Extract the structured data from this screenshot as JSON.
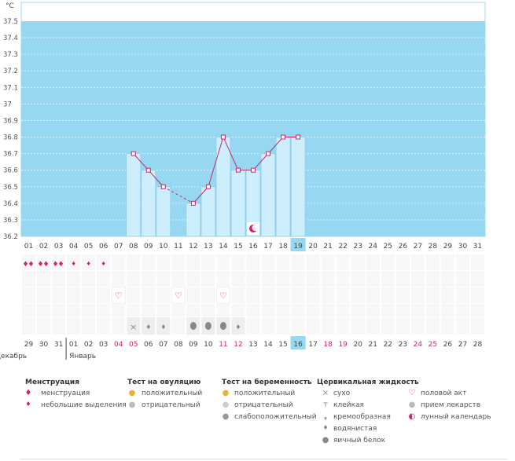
{
  "chart_data": {
    "type": "bar",
    "ylabel": "°C",
    "ylim": [
      36.2,
      37.5
    ],
    "y_ticks": [
      "36.2",
      "36.3",
      "36.4",
      "36.5",
      "36.6",
      "36.7",
      "36.8",
      "36.9",
      "37",
      "37.1",
      "37.2",
      "37.3",
      "37.4",
      "37.5"
    ],
    "days": [
      "01",
      "02",
      "03",
      "04",
      "05",
      "06",
      "07",
      "08",
      "09",
      "10",
      "11",
      "12",
      "13",
      "14",
      "15",
      "16",
      "17",
      "18",
      "19",
      "20",
      "21",
      "22",
      "23",
      "24",
      "25",
      "26",
      "27",
      "28",
      "29",
      "30",
      "31"
    ],
    "values": [
      null,
      null,
      null,
      null,
      null,
      null,
      null,
      36.7,
      36.6,
      36.5,
      null,
      36.4,
      36.5,
      36.8,
      36.6,
      36.6,
      36.7,
      36.8,
      36.8,
      null,
      null,
      null,
      null,
      null,
      null,
      null,
      null,
      null,
      null,
      null,
      null
    ],
    "current_day": "19",
    "dates": [
      "29",
      "30",
      "31",
      "01",
      "02",
      "03",
      "04",
      "05",
      "06",
      "07",
      "08",
      "09",
      "10",
      "11",
      "12",
      "13",
      "14",
      "15",
      "16",
      "17",
      "18",
      "19",
      "20",
      "21",
      "22",
      "23",
      "24",
      "25",
      "26",
      "27",
      "28"
    ],
    "red_dates": [
      6,
      7,
      13,
      14,
      20,
      21,
      26,
      27
    ],
    "current_date_index": 18,
    "month_left": "Декабрь",
    "month_right": "Январь",
    "menstruation": [
      0,
      0,
      0,
      1,
      1,
      1,
      null,
      null,
      null,
      null,
      null,
      null,
      null,
      null,
      null,
      null,
      null,
      null,
      null,
      null,
      null,
      null,
      null,
      null,
      null,
      null,
      null,
      null,
      null,
      null,
      null
    ],
    "intercourse_days": [
      6,
      10,
      13
    ],
    "moon_day": 15,
    "cervical": [
      null,
      null,
      null,
      null,
      null,
      null,
      null,
      "dry",
      "watery",
      "watery",
      null,
      "eggwhite",
      "eggwhite",
      "eggwhite",
      "watery",
      null,
      null,
      null,
      null,
      null,
      null,
      null,
      null,
      null,
      null,
      null,
      null,
      null,
      null,
      null,
      null
    ],
    "colors": {
      "plot_bg": "#96d7f2",
      "bar": "#cdeefc",
      "bar_stroke": "#8fcbe8",
      "line": "#d0236a",
      "current": "#96d7f2",
      "red": "#e0186c"
    }
  },
  "legend": {
    "menstruation": {
      "title": "Менструация",
      "items": [
        "менструация",
        "небольшие выделения"
      ]
    },
    "ovulation": {
      "title": "Тест на овуляцию",
      "items": [
        "положительный",
        "отрицательный"
      ]
    },
    "pregnancy": {
      "title": "Тест на беременность",
      "items": [
        "положительный",
        "отрицательный",
        "слабоположительный"
      ]
    },
    "cervical": {
      "title": "Цервикальная жидкость",
      "items": [
        "сухо",
        "клейкая",
        "кремообразная",
        "водянистая",
        "яичный белок"
      ]
    },
    "other": {
      "items": [
        "половой акт",
        "прием лекарств",
        "лунный календарь"
      ]
    }
  }
}
